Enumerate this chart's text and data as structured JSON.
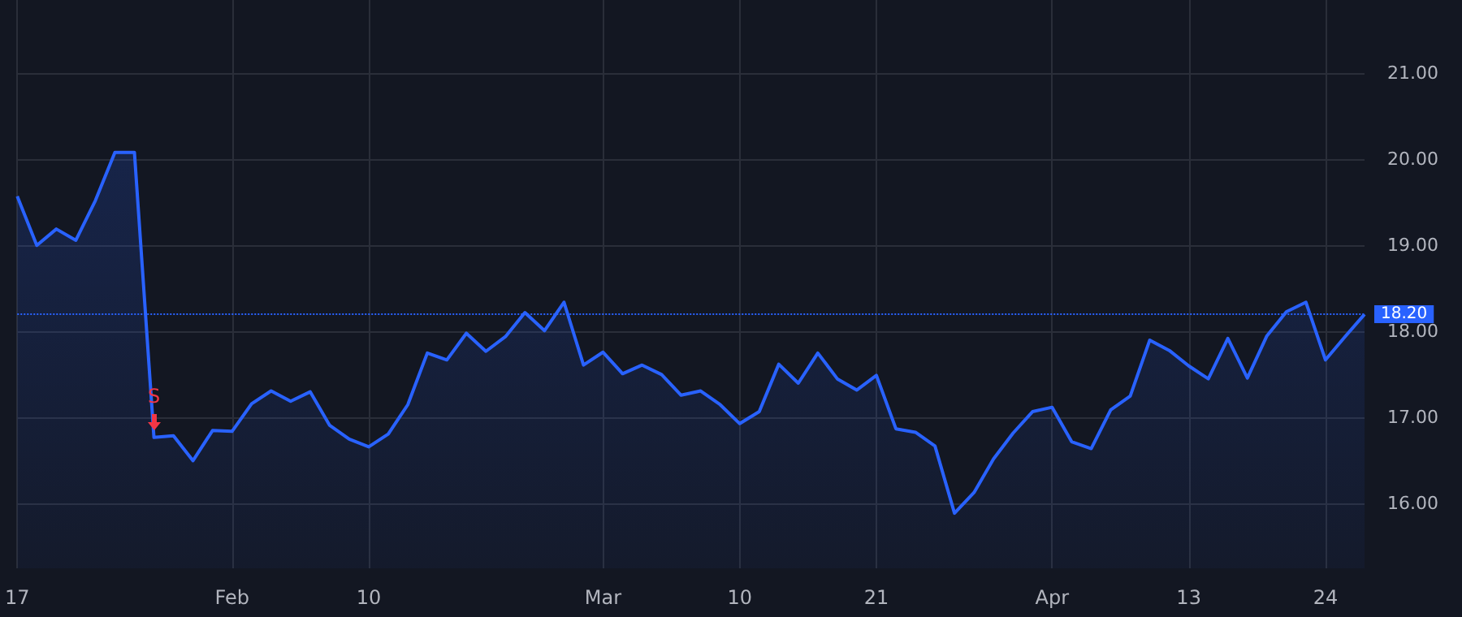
{
  "chart_data": {
    "type": "area",
    "categories": [
      "17",
      null,
      null,
      null,
      null,
      null,
      null,
      null,
      null,
      null,
      null,
      "Feb",
      null,
      null,
      null,
      null,
      null,
      null,
      "10",
      null,
      null,
      null,
      null,
      null,
      null,
      null,
      null,
      null,
      null,
      null,
      "Mar",
      null,
      null,
      null,
      null,
      null,
      null,
      "10",
      null,
      null,
      null,
      null,
      null,
      null,
      "21",
      null,
      null,
      null,
      null,
      null,
      null,
      null,
      null,
      "Apr",
      null,
      null,
      null,
      null,
      null,
      null,
      "13",
      null,
      null,
      null,
      null,
      null,
      null,
      "24",
      null,
      null
    ],
    "series": [
      {
        "color": "#2962ff",
        "values": [
          19.57,
          19.0,
          19.19,
          19.06,
          19.52,
          20.08,
          20.08,
          16.77,
          16.79,
          16.5,
          16.85,
          16.84,
          17.16,
          17.31,
          17.19,
          17.3,
          16.91,
          16.75,
          16.66,
          16.81,
          17.15,
          17.75,
          17.67,
          17.98,
          17.77,
          17.94,
          18.22,
          18.01,
          18.34,
          17.61,
          17.76,
          17.51,
          17.61,
          17.5,
          17.26,
          17.31,
          17.15,
          16.93,
          17.07,
          17.62,
          17.4,
          17.75,
          17.45,
          17.32,
          17.49,
          16.87,
          16.83,
          16.67,
          15.89,
          16.13,
          16.52,
          16.82,
          17.07,
          17.12,
          16.72,
          16.64,
          17.09,
          17.25,
          17.9,
          17.78,
          17.6,
          17.45,
          17.92,
          17.46,
          17.95,
          18.23,
          18.34,
          17.67,
          17.94,
          18.2
        ]
      }
    ],
    "ylim": [
      15.25,
      21.85
    ],
    "yticks": [
      {
        "value": 16,
        "label": "16.00"
      },
      {
        "value": 17,
        "label": "17.00"
      },
      {
        "value": 18,
        "label": "18.00"
      },
      {
        "value": 19,
        "label": "19.00"
      },
      {
        "value": 20,
        "label": "20.00"
      },
      {
        "value": 21,
        "label": "21.00"
      }
    ],
    "ref_lines": [
      {
        "axis": "y",
        "value": 18.2,
        "label": "18.20",
        "color": "#2962ff",
        "line_style": "dotted"
      }
    ],
    "annotations": [
      {
        "text": "S",
        "y": 17.0
      }
    ],
    "grid": true,
    "marker": "none",
    "line_style": "solid"
  }
}
